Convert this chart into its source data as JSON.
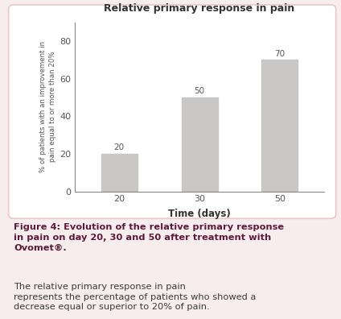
{
  "title": "Relative primary response in pain",
  "categories": [
    "20",
    "30",
    "50"
  ],
  "values": [
    20,
    50,
    70
  ],
  "bar_color": "#c9c6c6",
  "xlabel": "Time (days)",
  "ylabel": "% of patients with an improvement in\npain equal to or more than 20%",
  "ylim": [
    0,
    90
  ],
  "yticks": [
    0,
    20,
    40,
    60,
    80
  ],
  "bar_labels": [
    "20",
    "50",
    "70"
  ],
  "background_color": "#ffffff",
  "outer_bg": "#f7eded",
  "chart_border_color": "#e8c8c8",
  "caption_bold_part1": "Figure 4: Evolution of the relative primary response\nin pain on day 20, 30 and 50 after treatment with\nOvomet",
  "caption_superscript": "®",
  "caption_bold_end": ".",
  "caption_normal": " The relative primary response in pain\nrepresents the percentage of patients who showed a\ndecrease equal or superior to 20% of pain.",
  "caption_color_bold": "#5c1a3a",
  "caption_color_normal": "#3a3a3a",
  "title_color": "#333333",
  "tick_color": "#555555",
  "spine_color": "#888888"
}
